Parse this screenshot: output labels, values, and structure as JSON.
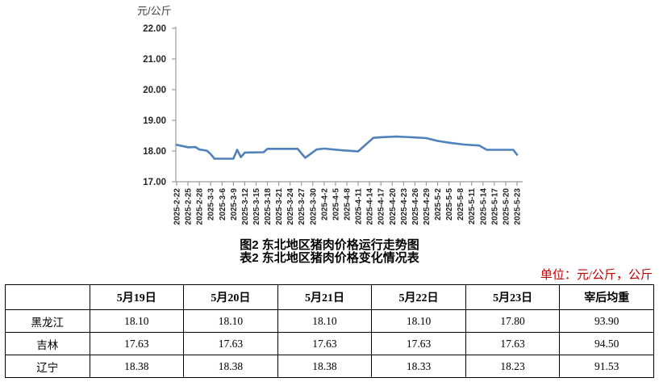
{
  "titles": {
    "figure": "图2 东北地区猪肉价格运行走势图",
    "table": "表2 东北地区猪肉价格变化情况表"
  },
  "unit_note": "单位：元/公斤，公斤",
  "chart_data": {
    "type": "line",
    "title": "图2 东北地区猪肉价格运行走势图",
    "xlabel": "",
    "ylabel": "元/公斤",
    "ylim": [
      17.0,
      22.0
    ],
    "y_tick_labels": [
      "22.00",
      "21.00",
      "20.00",
      "19.00",
      "18.00",
      "17.00"
    ],
    "x_tick_labels": [
      "2025-2-22",
      "2025-2-25",
      "2025-2-28",
      "2025-3-3",
      "2025-3-6",
      "2025-3-9",
      "2025-3-12",
      "2025-3-15",
      "2025-3-18",
      "2025-3-21",
      "2025-3-24",
      "2025-3-27",
      "2025-3-30",
      "2025-4-2",
      "2025-4-5",
      "2025-4-8",
      "2025-4-11",
      "2025-4-14",
      "2025-4-17",
      "2025-4-20",
      "2025-4-23",
      "2025-4-26",
      "2025-4-29",
      "2025-5-2",
      "2025-5-5",
      "2025-5-8",
      "2025-5-11",
      "2025-5-14",
      "2025-5-17",
      "2025-5-20",
      "2025-5-23"
    ],
    "x_tick_interval_days": 3,
    "x_max_day": 90,
    "grid": false,
    "legend": "none",
    "series": [
      {
        "points": [
          [
            0,
            18.2
          ],
          [
            2,
            18.15
          ],
          [
            3,
            18.12
          ],
          [
            5,
            18.13
          ],
          [
            6,
            18.05
          ],
          [
            8,
            18.01
          ],
          [
            9,
            17.9
          ],
          [
            10,
            17.75
          ],
          [
            15,
            17.75
          ],
          [
            16,
            18.04
          ],
          [
            17,
            17.8
          ],
          [
            18,
            17.95
          ],
          [
            23,
            17.96
          ],
          [
            24,
            18.07
          ],
          [
            32,
            18.07
          ],
          [
            34,
            17.78
          ],
          [
            37,
            18.05
          ],
          [
            39,
            18.08
          ],
          [
            44,
            18.02
          ],
          [
            48,
            17.99
          ],
          [
            52,
            18.43
          ],
          [
            54,
            18.45
          ],
          [
            58,
            18.47
          ],
          [
            62,
            18.45
          ],
          [
            66,
            18.42
          ],
          [
            69,
            18.33
          ],
          [
            72,
            18.27
          ],
          [
            76,
            18.21
          ],
          [
            80,
            18.18
          ],
          [
            82,
            18.04
          ],
          [
            89,
            18.04
          ],
          [
            90,
            17.88
          ]
        ]
      }
    ]
  },
  "table": {
    "columns": [
      "",
      "5月19日",
      "5月20日",
      "5月21日",
      "5月22日",
      "5月23日",
      "宰后均重"
    ],
    "rows": [
      {
        "region": "黑龙江",
        "values": [
          "18.10",
          "18.10",
          "18.10",
          "18.10",
          "17.80",
          "93.90"
        ]
      },
      {
        "region": "吉林",
        "values": [
          "17.63",
          "17.63",
          "17.63",
          "17.63",
          "17.63",
          "94.50"
        ]
      },
      {
        "region": "辽宁",
        "values": [
          "18.38",
          "18.38",
          "18.38",
          "18.33",
          "18.23",
          "91.53"
        ]
      }
    ]
  },
  "colors": {
    "line": "#4f81bd",
    "axis": "#9b9b9b",
    "tick_text": "#262626",
    "axis_title_text": "#3f3f3f",
    "unit_note_text": "#c00000",
    "table_border": "#000000"
  }
}
